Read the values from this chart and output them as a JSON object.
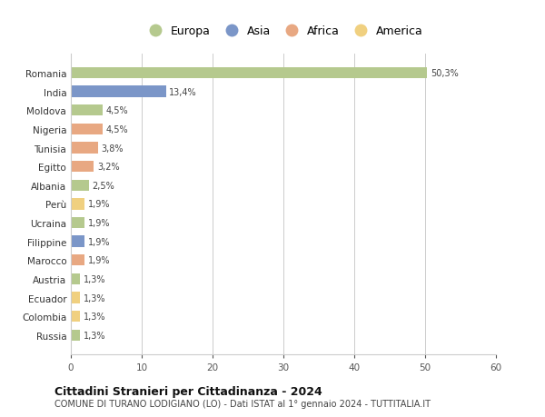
{
  "countries": [
    "Romania",
    "India",
    "Moldova",
    "Nigeria",
    "Tunisia",
    "Egitto",
    "Albania",
    "Perù",
    "Ucraina",
    "Filippine",
    "Marocco",
    "Austria",
    "Ecuador",
    "Colombia",
    "Russia"
  ],
  "values": [
    50.3,
    13.4,
    4.5,
    4.5,
    3.8,
    3.2,
    2.5,
    1.9,
    1.9,
    1.9,
    1.9,
    1.3,
    1.3,
    1.3,
    1.3
  ],
  "labels": [
    "50,3%",
    "13,4%",
    "4,5%",
    "4,5%",
    "3,8%",
    "3,2%",
    "2,5%",
    "1,9%",
    "1,9%",
    "1,9%",
    "1,9%",
    "1,3%",
    "1,3%",
    "1,3%",
    "1,3%"
  ],
  "continents": [
    "Europa",
    "Asia",
    "Europa",
    "Africa",
    "Africa",
    "Africa",
    "Europa",
    "America",
    "Europa",
    "Asia",
    "Africa",
    "Europa",
    "America",
    "America",
    "Europa"
  ],
  "colors": {
    "Europa": "#b5c98e",
    "Asia": "#7b96c8",
    "Africa": "#e8a882",
    "America": "#f0d080"
  },
  "legend_order": [
    "Europa",
    "Asia",
    "Africa",
    "America"
  ],
  "xlim": [
    0,
    60
  ],
  "xticks": [
    0,
    10,
    20,
    30,
    40,
    50,
    60
  ],
  "title": "Cittadini Stranieri per Cittadinanza - 2024",
  "subtitle": "COMUNE DI TURANO LODIGIANO (LO) - Dati ISTAT al 1° gennaio 2024 - TUTTITALIA.IT",
  "bg_color": "#ffffff",
  "grid_color": "#cccccc"
}
